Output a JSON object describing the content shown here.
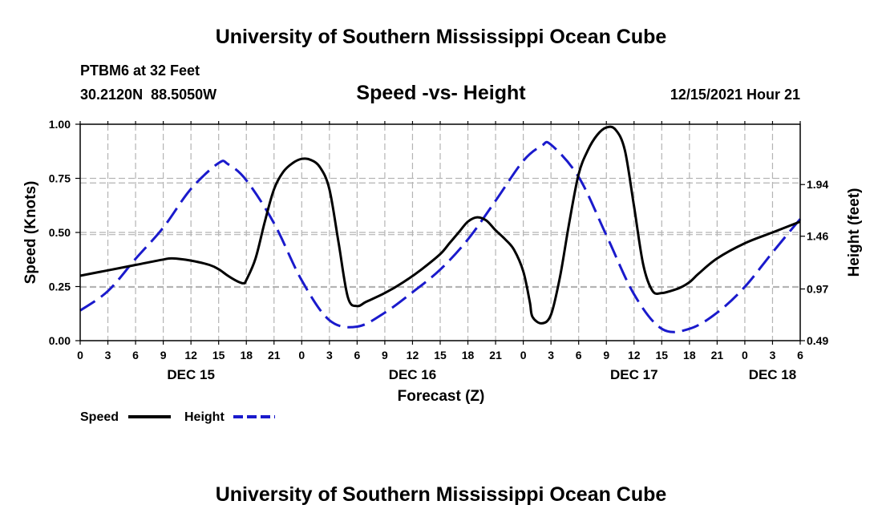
{
  "title": "University of Southern Mississippi Ocean Cube",
  "footer_title": "University of Southern Mississippi Ocean Cube",
  "station": "PTBM6 at 32 Feet",
  "coordinates": "30.2120N  88.5050W",
  "timestamp": "12/15/2021 Hour 21",
  "colors": {
    "speed": "#000000",
    "height": "#1a1acc",
    "grid": "#b4b4b4"
  },
  "chart_data": {
    "type": "line",
    "title": "Speed -vs- Height",
    "xlabel": "Forecast (Z)",
    "ylabel": "Speed (Knots)",
    "ylabel_right": "Height (feet)",
    "xlim": [
      0,
      78
    ],
    "ylim": [
      0,
      1.0
    ],
    "ylim_right": [
      0.49,
      2.5
    ],
    "grid": true,
    "legend_position": "bottom-left",
    "x_tick_hours": [
      0,
      3,
      6,
      9,
      12,
      15,
      18,
      21,
      24,
      27,
      30,
      33,
      36,
      39,
      42,
      45,
      48,
      51,
      54,
      57,
      60,
      63,
      66,
      69,
      72,
      75,
      78
    ],
    "x_tick_labels": [
      "0",
      "3",
      "6",
      "9",
      "12",
      "15",
      "18",
      "21",
      "0",
      "3",
      "6",
      "9",
      "12",
      "15",
      "18",
      "21",
      "0",
      "3",
      "6",
      "9",
      "12",
      "15",
      "18",
      "21",
      "0",
      "3",
      "6"
    ],
    "date_labels": [
      {
        "hour": 12,
        "label": "DEC 15"
      },
      {
        "hour": 36,
        "label": "DEC 16"
      },
      {
        "hour": 60,
        "label": "DEC 17"
      },
      {
        "hour": 75,
        "label": "DEC 18"
      }
    ],
    "y_ticks": [
      0,
      0.25,
      0.5,
      0.75,
      1.0
    ],
    "y_tick_labels": [
      "0.00",
      "0.25",
      "0.50",
      "0.75",
      "1.00"
    ],
    "y_ticks_right": [
      0.49,
      0.97,
      1.46,
      1.94
    ],
    "y_tick_labels_right": [
      "0.49",
      "0.97",
      "1.46",
      "1.94"
    ],
    "series": [
      {
        "name": "Speed",
        "axis": "left",
        "style": "solid",
        "x": [
          0,
          3,
          6,
          9,
          10,
          12,
          14,
          15,
          16,
          17,
          17.7,
          18,
          19,
          20,
          21,
          22,
          23,
          24,
          25,
          26,
          27,
          28,
          29,
          30,
          31,
          33,
          35,
          37,
          39,
          40,
          41,
          42,
          43,
          44,
          45,
          46,
          47,
          48,
          48.7,
          49,
          50,
          51,
          52,
          53,
          54,
          55,
          56,
          57,
          58,
          59,
          60,
          61,
          62,
          63,
          64,
          65,
          66,
          67,
          69,
          72,
          75,
          78
        ],
        "y": [
          0.3,
          0.325,
          0.35,
          0.375,
          0.38,
          0.37,
          0.35,
          0.33,
          0.3,
          0.275,
          0.265,
          0.28,
          0.38,
          0.55,
          0.7,
          0.78,
          0.82,
          0.84,
          0.835,
          0.8,
          0.7,
          0.45,
          0.2,
          0.16,
          0.18,
          0.22,
          0.27,
          0.33,
          0.4,
          0.45,
          0.5,
          0.55,
          0.57,
          0.555,
          0.51,
          0.47,
          0.42,
          0.32,
          0.18,
          0.11,
          0.08,
          0.12,
          0.3,
          0.55,
          0.77,
          0.88,
          0.95,
          0.985,
          0.975,
          0.88,
          0.62,
          0.35,
          0.23,
          0.22,
          0.23,
          0.245,
          0.27,
          0.31,
          0.38,
          0.45,
          0.5,
          0.55
        ]
      },
      {
        "name": "Height",
        "axis": "right",
        "style": "dashed",
        "x": [
          0,
          3,
          6,
          9,
          12,
          15,
          16,
          18,
          21,
          24,
          27,
          30,
          33,
          36,
          39,
          42,
          45,
          48,
          50,
          51,
          54,
          57,
          60,
          63,
          66,
          69,
          72,
          75,
          78
        ],
        "y": [
          0.77,
          0.95,
          1.25,
          1.54,
          1.9,
          2.14,
          2.13,
          1.98,
          1.58,
          1.05,
          0.68,
          0.62,
          0.75,
          0.94,
          1.15,
          1.43,
          1.79,
          2.16,
          2.3,
          2.31,
          2.01,
          1.47,
          0.92,
          0.6,
          0.6,
          0.75,
          0.99,
          1.31,
          1.62
        ]
      }
    ]
  }
}
